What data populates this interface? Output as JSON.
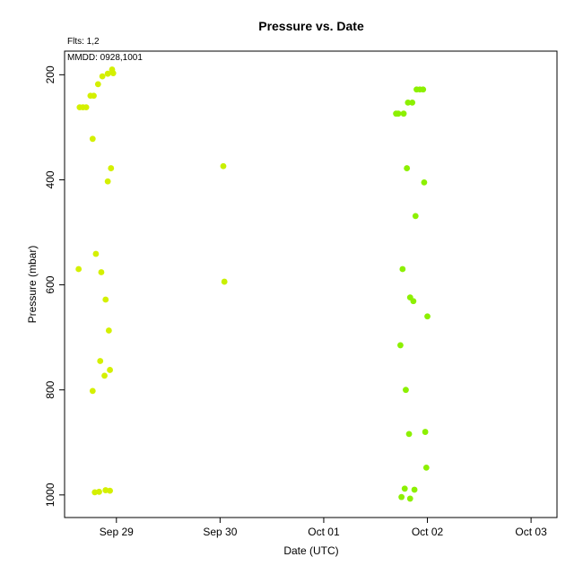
{
  "chart_data": {
    "type": "scatter",
    "title": "Pressure  vs. Date",
    "xlabel": "Date (UTC)",
    "ylabel": "Pressure (mbar)",
    "annotations": {
      "fits": "Flts: 1,2",
      "mmdd": "MMDD: 0928,1001"
    },
    "xlim": [
      "2024-09-28T12:00",
      "2024-10-03T06:00"
    ],
    "ylim": [
      1043,
      155
    ],
    "y_inverted": true,
    "grid": false,
    "x_ticks": [
      {
        "t": "2024-09-29T00:00",
        "label": "Sep 29"
      },
      {
        "t": "2024-09-30T00:00",
        "label": "Sep 30"
      },
      {
        "t": "2024-10-01T00:00",
        "label": "Oct 01"
      },
      {
        "t": "2024-10-02T00:00",
        "label": "Oct 02"
      },
      {
        "t": "2024-10-03T00:00",
        "label": "Oct 03"
      }
    ],
    "y_ticks": [
      200,
      400,
      600,
      800,
      1000
    ],
    "series": [
      {
        "color": "#d4f000",
        "points": [
          {
            "x": "2024-09-28T15:15",
            "y": 570
          },
          {
            "x": "2024-09-28T15:30",
            "y": 262
          },
          {
            "x": "2024-09-28T16:15",
            "y": 262
          },
          {
            "x": "2024-09-28T17:00",
            "y": 262
          },
          {
            "x": "2024-09-28T18:00",
            "y": 240
          },
          {
            "x": "2024-09-28T18:30",
            "y": 322
          },
          {
            "x": "2024-09-28T18:30",
            "y": 802
          },
          {
            "x": "2024-09-28T18:45",
            "y": 240
          },
          {
            "x": "2024-09-28T19:00",
            "y": 995
          },
          {
            "x": "2024-09-28T19:15",
            "y": 541
          },
          {
            "x": "2024-09-28T19:45",
            "y": 218
          },
          {
            "x": "2024-09-28T20:00",
            "y": 994
          },
          {
            "x": "2024-09-28T20:15",
            "y": 745
          },
          {
            "x": "2024-09-28T20:30",
            "y": 576
          },
          {
            "x": "2024-09-28T20:45",
            "y": 203
          },
          {
            "x": "2024-09-28T21:15",
            "y": 773
          },
          {
            "x": "2024-09-28T21:30",
            "y": 628
          },
          {
            "x": "2024-09-28T21:30",
            "y": 991
          },
          {
            "x": "2024-09-28T22:00",
            "y": 198
          },
          {
            "x": "2024-09-28T22:00",
            "y": 403
          },
          {
            "x": "2024-09-28T22:15",
            "y": 687
          },
          {
            "x": "2024-09-28T22:30",
            "y": 762
          },
          {
            "x": "2024-09-28T22:30",
            "y": 992
          },
          {
            "x": "2024-09-28T22:45",
            "y": 378
          },
          {
            "x": "2024-09-28T23:00",
            "y": 190
          },
          {
            "x": "2024-09-28T23:15",
            "y": 197
          }
        ]
      },
      {
        "color": "#c8f000",
        "points": [
          {
            "x": "2024-09-30T00:45",
            "y": 374
          },
          {
            "x": "2024-09-30T01:00",
            "y": 594
          }
        ]
      },
      {
        "color": "#8cf000",
        "points": [
          {
            "x": "2024-10-01T16:45",
            "y": 274
          },
          {
            "x": "2024-10-01T17:15",
            "y": 274
          },
          {
            "x": "2024-10-01T17:45",
            "y": 715
          },
          {
            "x": "2024-10-01T18:00",
            "y": 1004
          },
          {
            "x": "2024-10-01T18:15",
            "y": 570
          },
          {
            "x": "2024-10-01T18:30",
            "y": 274
          },
          {
            "x": "2024-10-01T18:45",
            "y": 988
          },
          {
            "x": "2024-10-01T19:00",
            "y": 800
          },
          {
            "x": "2024-10-01T19:15",
            "y": 378
          },
          {
            "x": "2024-10-01T19:30",
            "y": 253
          },
          {
            "x": "2024-10-01T19:45",
            "y": 884
          },
          {
            "x": "2024-10-01T20:00",
            "y": 1007
          },
          {
            "x": "2024-10-01T20:00",
            "y": 624
          },
          {
            "x": "2024-10-01T20:30",
            "y": 253
          },
          {
            "x": "2024-10-01T20:45",
            "y": 631
          },
          {
            "x": "2024-10-01T21:00",
            "y": 990
          },
          {
            "x": "2024-10-01T21:15",
            "y": 469
          },
          {
            "x": "2024-10-01T21:30",
            "y": 228
          },
          {
            "x": "2024-10-01T22:15",
            "y": 228
          },
          {
            "x": "2024-10-01T23:00",
            "y": 228
          },
          {
            "x": "2024-10-01T23:15",
            "y": 405
          },
          {
            "x": "2024-10-01T23:30",
            "y": 880
          },
          {
            "x": "2024-10-01T23:45",
            "y": 948
          },
          {
            "x": "2024-10-02T00:00",
            "y": 660
          }
        ]
      }
    ]
  }
}
